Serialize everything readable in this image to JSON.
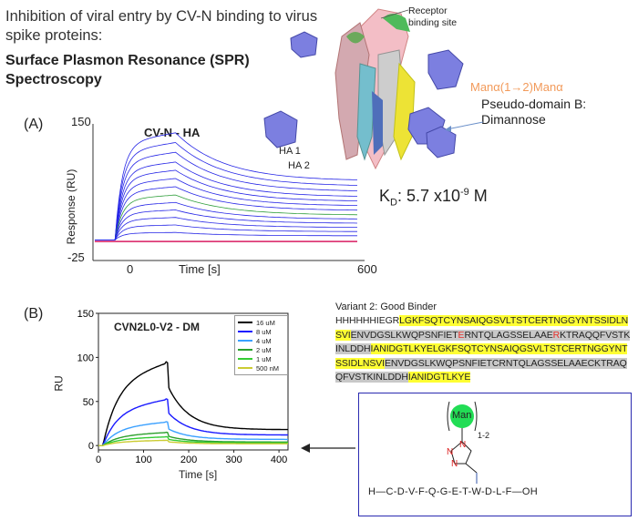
{
  "slide": {
    "title": "Inhibition of viral entry by CV-N binding to virus spike proteins:",
    "subtitle": "Surface Plasmon Resonance (SPR) Spectroscopy",
    "label_a": "(A)",
    "label_b": "(B)",
    "kd_prefix": "K",
    "kd_sub": "D",
    "kd_value": ": 5.7 x10",
    "kd_exp": "-9",
    "kd_unit": " M"
  },
  "structure": {
    "receptor_label": "Receptor binding site",
    "mannose_label": "Manα(1→2)Manα",
    "pseudo_label": "Pseudo-domain B:",
    "dimannose_label": "Dimannose"
  },
  "chart_a": {
    "title": "CV-N - HA",
    "ylabel": "Response (RU)",
    "xlabel": "Time [s]",
    "ytick_top": "150",
    "ytick_bottom": "-25",
    "xtick_0": "0",
    "xtick_600": "600",
    "annot_1": "HA 1",
    "annot_2": "HA 2"
  },
  "chart_b": {
    "title": "CVN2L0-V2 - DM",
    "ylabel": "RU",
    "xlabel": "Time [s]",
    "yticks": [
      "150",
      "100",
      "50",
      "0"
    ],
    "xticks": [
      "0",
      "100",
      "200",
      "300",
      "400"
    ],
    "legend": [
      {
        "name": "16 uM",
        "color": "#000000"
      },
      {
        "name": "8 uM",
        "color": "#1a1aff"
      },
      {
        "name": "4 uM",
        "color": "#3aa0ff"
      },
      {
        "name": "2 uM",
        "color": "#2ca02c"
      },
      {
        "name": "1 uM",
        "color": "#33cc33"
      },
      {
        "name": "500 nM",
        "color": "#cccc33"
      }
    ]
  },
  "chart_data": [
    {
      "type": "line",
      "title": "CV-N - HA",
      "xlabel": "Time [s]",
      "ylabel": "Response (RU)",
      "xlim": [
        -50,
        600
      ],
      "ylim": [
        -25,
        150
      ],
      "series": [
        {
          "peak": 143
        },
        {
          "peak": 130
        },
        {
          "peak": 117
        },
        {
          "peak": 104
        },
        {
          "peak": 93
        },
        {
          "peak": 82
        },
        {
          "peak": 71
        },
        {
          "peak": 60
        },
        {
          "peak": 50
        },
        {
          "peak": 40
        },
        {
          "peak": 30
        },
        {
          "peak": 20
        },
        {
          "peak": 10
        }
      ]
    },
    {
      "type": "line",
      "title": "CVN2L0-V2 - DM",
      "xlabel": "Time [s]",
      "ylabel": "RU",
      "xlim": [
        0,
        420
      ],
      "ylim": [
        -5,
        150
      ],
      "series": [
        {
          "name": "16 uM",
          "peak": 95,
          "end": 18
        },
        {
          "name": "8 uM",
          "peak": 53,
          "end": 12
        },
        {
          "name": "4 uM",
          "peak": 27,
          "end": 7
        },
        {
          "name": "2 uM",
          "peak": 15,
          "end": 4
        },
        {
          "name": "1 uM",
          "peak": 10,
          "end": 3
        },
        {
          "name": "500 nM",
          "peak": 6,
          "end": 2
        }
      ]
    }
  ],
  "variant": {
    "title": "Variant 2: Good Binder",
    "segments": [
      {
        "t": "HHHHHHIEGR",
        "c": "n"
      },
      {
        "t": "LGKFSQTCYNSAIQGSVLTSTCERTNGGYNTSSIDLNSVI",
        "c": "y"
      },
      {
        "t": "ENVDGSLKWQPSNFIET",
        "c": "g"
      },
      {
        "t": "E",
        "c": "gr"
      },
      {
        "t": "RNTQLAGSSELAAE",
        "c": "g"
      },
      {
        "t": "R",
        "c": "gr"
      },
      {
        "t": "KTRAQQFVSTKINLDDH",
        "c": "g"
      },
      {
        "t": "IANIDGTLKYEL",
        "c": "y"
      },
      {
        "t": "GKFSQTCYNSAIQGSVLTSTCERTNGGYNTSSIDLNSVI",
        "c": "y"
      },
      {
        "t": "ENVDGSLKWQPSNFIETCRNTQLAGSSELAAECKTRAQQFVSTKINLDDH",
        "c": "g"
      },
      {
        "t": "IANIDGTLKYE",
        "c": "y"
      }
    ]
  },
  "peptide": {
    "man_label": "Man",
    "repeat": "1-2",
    "sequence": "H—C-D-V-F-Q-G-E-T-W-D-L-F—OH"
  }
}
